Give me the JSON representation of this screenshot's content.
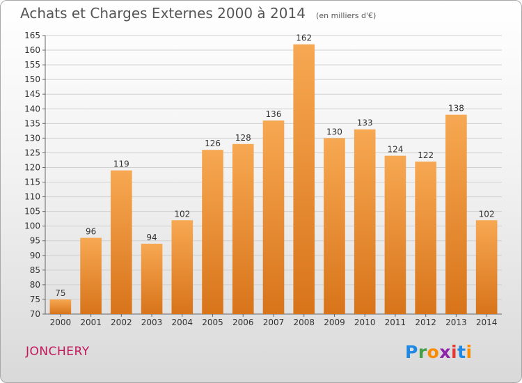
{
  "chart_data": {
    "type": "bar",
    "title": "Achats et Charges Externes 2000 à 2014",
    "unit_label": "(en milliers d'€)",
    "categories": [
      "2000",
      "2001",
      "2002",
      "2003",
      "2004",
      "2005",
      "2006",
      "2007",
      "2008",
      "2009",
      "2010",
      "2011",
      "2012",
      "2013",
      "2014"
    ],
    "values": [
      75,
      96,
      119,
      94,
      102,
      126,
      128,
      136,
      162,
      130,
      133,
      124,
      122,
      138,
      102
    ],
    "ylim": [
      70,
      165
    ],
    "yticks": [
      70,
      75,
      80,
      85,
      90,
      95,
      100,
      105,
      110,
      115,
      120,
      125,
      130,
      135,
      140,
      145,
      150,
      155,
      160,
      165
    ],
    "grid": true,
    "bar_color": "#f0932b"
  },
  "footer": {
    "location": "JONCHERY",
    "logo_text": "Proxiti"
  }
}
